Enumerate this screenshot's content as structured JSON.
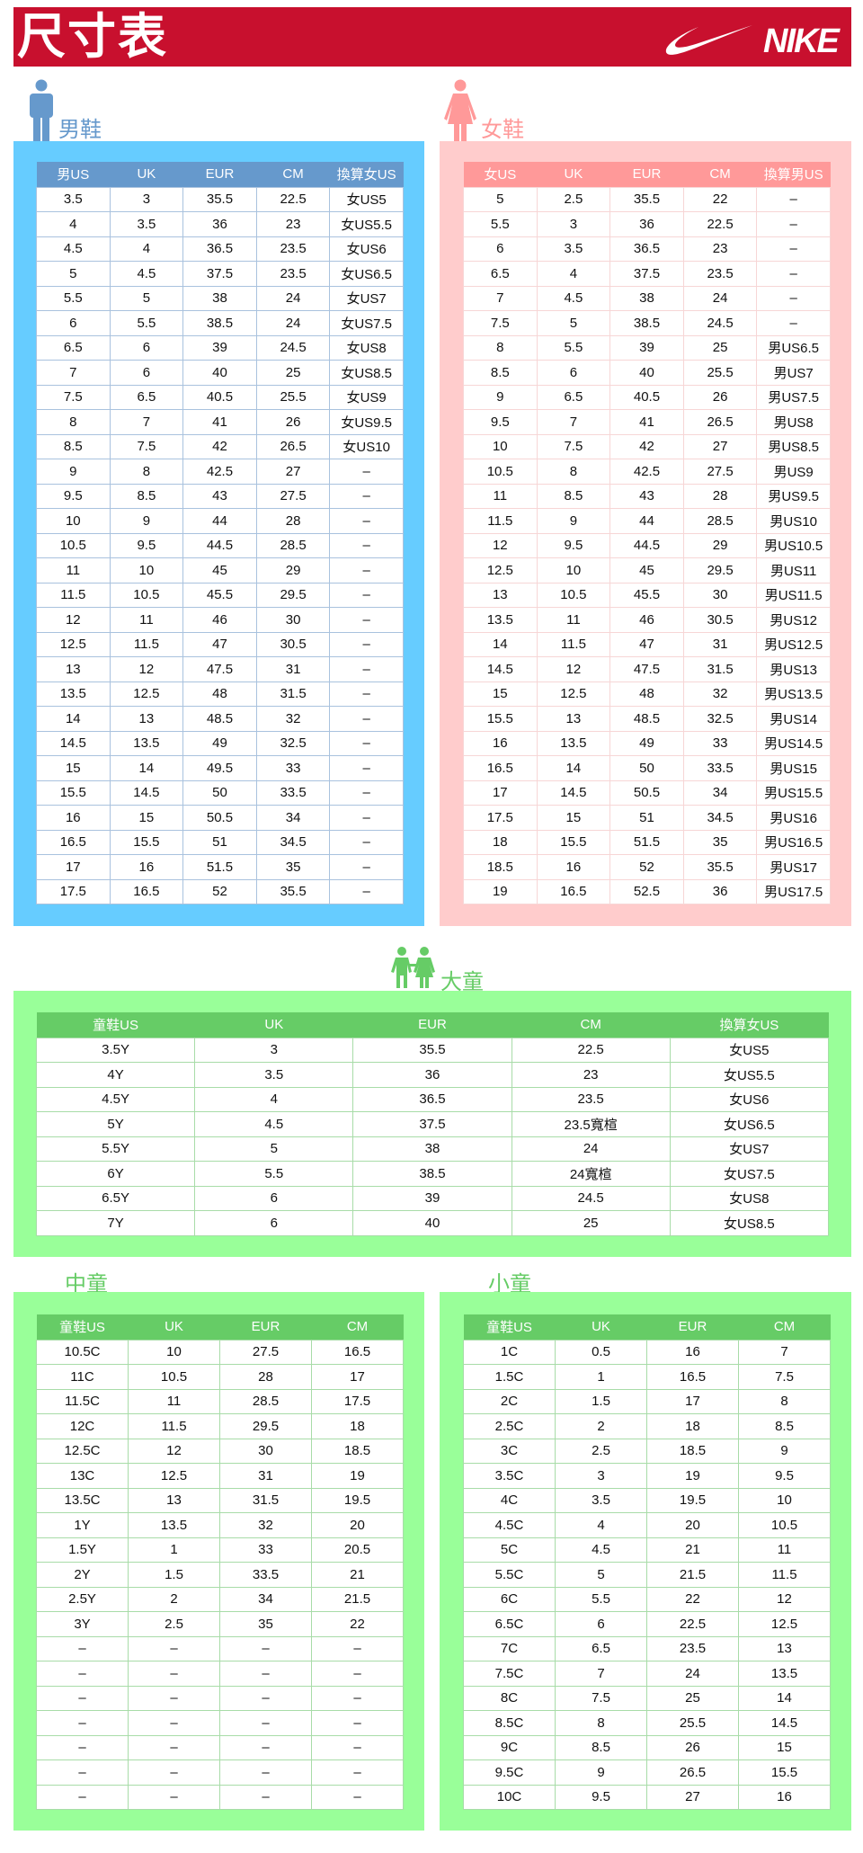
{
  "header": {
    "title": "尺寸表",
    "logo": "NIKE",
    "brand_color": "#c8102e"
  },
  "men": {
    "label": "男鞋",
    "icon": "man-icon",
    "color": "#6699cc",
    "panel_color": "#66ccff",
    "columns": [
      "男US",
      "UK",
      "EUR",
      "CM",
      "換算女US"
    ],
    "rows": [
      [
        "3.5",
        "3",
        "35.5",
        "22.5",
        "女US5"
      ],
      [
        "4",
        "3.5",
        "36",
        "23",
        "女US5.5"
      ],
      [
        "4.5",
        "4",
        "36.5",
        "23.5",
        "女US6"
      ],
      [
        "5",
        "4.5",
        "37.5",
        "23.5",
        "女US6.5"
      ],
      [
        "5.5",
        "5",
        "38",
        "24",
        "女US7"
      ],
      [
        "6",
        "5.5",
        "38.5",
        "24",
        "女US7.5"
      ],
      [
        "6.5",
        "6",
        "39",
        "24.5",
        "女US8"
      ],
      [
        "7",
        "6",
        "40",
        "25",
        "女US8.5"
      ],
      [
        "7.5",
        "6.5",
        "40.5",
        "25.5",
        "女US9"
      ],
      [
        "8",
        "7",
        "41",
        "26",
        "女US9.5"
      ],
      [
        "8.5",
        "7.5",
        "42",
        "26.5",
        "女US10"
      ],
      [
        "9",
        "8",
        "42.5",
        "27",
        "–"
      ],
      [
        "9.5",
        "8.5",
        "43",
        "27.5",
        "–"
      ],
      [
        "10",
        "9",
        "44",
        "28",
        "–"
      ],
      [
        "10.5",
        "9.5",
        "44.5",
        "28.5",
        "–"
      ],
      [
        "11",
        "10",
        "45",
        "29",
        "–"
      ],
      [
        "11.5",
        "10.5",
        "45.5",
        "29.5",
        "–"
      ],
      [
        "12",
        "11",
        "46",
        "30",
        "–"
      ],
      [
        "12.5",
        "11.5",
        "47",
        "30.5",
        "–"
      ],
      [
        "13",
        "12",
        "47.5",
        "31",
        "–"
      ],
      [
        "13.5",
        "12.5",
        "48",
        "31.5",
        "–"
      ],
      [
        "14",
        "13",
        "48.5",
        "32",
        "–"
      ],
      [
        "14.5",
        "13.5",
        "49",
        "32.5",
        "–"
      ],
      [
        "15",
        "14",
        "49.5",
        "33",
        "–"
      ],
      [
        "15.5",
        "14.5",
        "50",
        "33.5",
        "–"
      ],
      [
        "16",
        "15",
        "50.5",
        "34",
        "–"
      ],
      [
        "16.5",
        "15.5",
        "51",
        "34.5",
        "–"
      ],
      [
        "17",
        "16",
        "51.5",
        "35",
        "–"
      ],
      [
        "17.5",
        "16.5",
        "52",
        "35.5",
        "–"
      ]
    ]
  },
  "women": {
    "label": "女鞋",
    "icon": "woman-icon",
    "color": "#ff9999",
    "panel_color": "#ffcccc",
    "columns": [
      "女US",
      "UK",
      "EUR",
      "CM",
      "換算男US"
    ],
    "rows": [
      [
        "5",
        "2.5",
        "35.5",
        "22",
        "–"
      ],
      [
        "5.5",
        "3",
        "36",
        "22.5",
        "–"
      ],
      [
        "6",
        "3.5",
        "36.5",
        "23",
        "–"
      ],
      [
        "6.5",
        "4",
        "37.5",
        "23.5",
        "–"
      ],
      [
        "7",
        "4.5",
        "38",
        "24",
        "–"
      ],
      [
        "7.5",
        "5",
        "38.5",
        "24.5",
        "–"
      ],
      [
        "8",
        "5.5",
        "39",
        "25",
        "男US6.5"
      ],
      [
        "8.5",
        "6",
        "40",
        "25.5",
        "男US7"
      ],
      [
        "9",
        "6.5",
        "40.5",
        "26",
        "男US7.5"
      ],
      [
        "9.5",
        "7",
        "41",
        "26.5",
        "男US8"
      ],
      [
        "10",
        "7.5",
        "42",
        "27",
        "男US8.5"
      ],
      [
        "10.5",
        "8",
        "42.5",
        "27.5",
        "男US9"
      ],
      [
        "11",
        "8.5",
        "43",
        "28",
        "男US9.5"
      ],
      [
        "11.5",
        "9",
        "44",
        "28.5",
        "男US10"
      ],
      [
        "12",
        "9.5",
        "44.5",
        "29",
        "男US10.5"
      ],
      [
        "12.5",
        "10",
        "45",
        "29.5",
        "男US11"
      ],
      [
        "13",
        "10.5",
        "45.5",
        "30",
        "男US11.5"
      ],
      [
        "13.5",
        "11",
        "46",
        "30.5",
        "男US12"
      ],
      [
        "14",
        "11.5",
        "47",
        "31",
        "男US12.5"
      ],
      [
        "14.5",
        "12",
        "47.5",
        "31.5",
        "男US13"
      ],
      [
        "15",
        "12.5",
        "48",
        "32",
        "男US13.5"
      ],
      [
        "15.5",
        "13",
        "48.5",
        "32.5",
        "男US14"
      ],
      [
        "16",
        "13.5",
        "49",
        "33",
        "男US14.5"
      ],
      [
        "16.5",
        "14",
        "50",
        "33.5",
        "男US15"
      ],
      [
        "17",
        "14.5",
        "50.5",
        "34",
        "男US15.5"
      ],
      [
        "17.5",
        "15",
        "51",
        "34.5",
        "男US16"
      ],
      [
        "18",
        "15.5",
        "51.5",
        "35",
        "男US16.5"
      ],
      [
        "18.5",
        "16",
        "52",
        "35.5",
        "男US17"
      ],
      [
        "19",
        "16.5",
        "52.5",
        "36",
        "男US17.5"
      ]
    ]
  },
  "big_kids": {
    "label": "大童",
    "icon": "kids-icon",
    "color": "#66cc66",
    "panel_color": "#99ff99",
    "columns": [
      "童鞋US",
      "UK",
      "EUR",
      "CM",
      "換算女US"
    ],
    "rows": [
      [
        "3.5Y",
        "3",
        "35.5",
        "22.5",
        "女US5"
      ],
      [
        "4Y",
        "3.5",
        "36",
        "23",
        "女US5.5"
      ],
      [
        "4.5Y",
        "4",
        "36.5",
        "23.5",
        "女US6"
      ],
      [
        "5Y",
        "4.5",
        "37.5",
        "23.5寬楦",
        "女US6.5"
      ],
      [
        "5.5Y",
        "5",
        "38",
        "24",
        "女US7"
      ],
      [
        "6Y",
        "5.5",
        "38.5",
        "24寬楦",
        "女US7.5"
      ],
      [
        "6.5Y",
        "6",
        "39",
        "24.5",
        "女US8"
      ],
      [
        "7Y",
        "6",
        "40",
        "25",
        "女US8.5"
      ]
    ]
  },
  "mid_kids": {
    "label": "中童",
    "columns": [
      "童鞋US",
      "UK",
      "EUR",
      "CM"
    ],
    "rows": [
      [
        "10.5C",
        "10",
        "27.5",
        "16.5"
      ],
      [
        "11C",
        "10.5",
        "28",
        "17"
      ],
      [
        "11.5C",
        "11",
        "28.5",
        "17.5"
      ],
      [
        "12C",
        "11.5",
        "29.5",
        "18"
      ],
      [
        "12.5C",
        "12",
        "30",
        "18.5"
      ],
      [
        "13C",
        "12.5",
        "31",
        "19"
      ],
      [
        "13.5C",
        "13",
        "31.5",
        "19.5"
      ],
      [
        "1Y",
        "13.5",
        "32",
        "20"
      ],
      [
        "1.5Y",
        "1",
        "33",
        "20.5"
      ],
      [
        "2Y",
        "1.5",
        "33.5",
        "21"
      ],
      [
        "2.5Y",
        "2",
        "34",
        "21.5"
      ],
      [
        "3Y",
        "2.5",
        "35",
        "22"
      ],
      [
        "–",
        "–",
        "–",
        "–"
      ],
      [
        "–",
        "–",
        "–",
        "–"
      ],
      [
        "–",
        "–",
        "–",
        "–"
      ],
      [
        "–",
        "–",
        "–",
        "–"
      ],
      [
        "–",
        "–",
        "–",
        "–"
      ],
      [
        "–",
        "–",
        "–",
        "–"
      ],
      [
        "–",
        "–",
        "–",
        "–"
      ]
    ]
  },
  "small_kids": {
    "label": "小童",
    "columns": [
      "童鞋US",
      "UK",
      "EUR",
      "CM"
    ],
    "rows": [
      [
        "1C",
        "0.5",
        "16",
        "7"
      ],
      [
        "1.5C",
        "1",
        "16.5",
        "7.5"
      ],
      [
        "2C",
        "1.5",
        "17",
        "8"
      ],
      [
        "2.5C",
        "2",
        "18",
        "8.5"
      ],
      [
        "3C",
        "2.5",
        "18.5",
        "9"
      ],
      [
        "3.5C",
        "3",
        "19",
        "9.5"
      ],
      [
        "4C",
        "3.5",
        "19.5",
        "10"
      ],
      [
        "4.5C",
        "4",
        "20",
        "10.5"
      ],
      [
        "5C",
        "4.5",
        "21",
        "11"
      ],
      [
        "5.5C",
        "5",
        "21.5",
        "11.5"
      ],
      [
        "6C",
        "5.5",
        "22",
        "12"
      ],
      [
        "6.5C",
        "6",
        "22.5",
        "12.5"
      ],
      [
        "7C",
        "6.5",
        "23.5",
        "13"
      ],
      [
        "7.5C",
        "7",
        "24",
        "13.5"
      ],
      [
        "8C",
        "7.5",
        "25",
        "14"
      ],
      [
        "8.5C",
        "8",
        "25.5",
        "14.5"
      ],
      [
        "9C",
        "8.5",
        "26",
        "15"
      ],
      [
        "9.5C",
        "9",
        "26.5",
        "15.5"
      ],
      [
        "10C",
        "9.5",
        "27",
        "16"
      ]
    ]
  }
}
